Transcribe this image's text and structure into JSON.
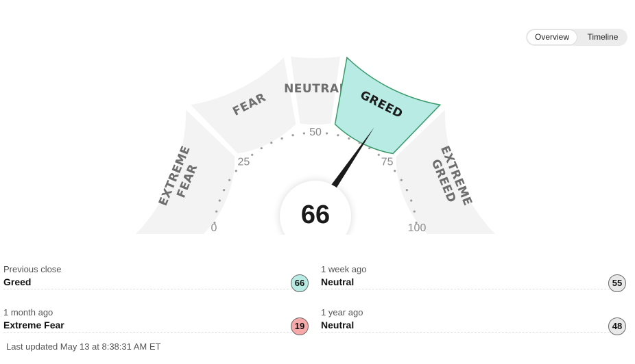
{
  "toggle": {
    "overview_label": "Overview",
    "timeline_label": "Timeline",
    "active": "overview"
  },
  "gauge": {
    "score": 66,
    "active_segment": "greed",
    "segments": [
      {
        "key": "extreme-fear",
        "lines": [
          "EXTREME",
          "FEAR"
        ]
      },
      {
        "key": "fear",
        "lines": [
          "FEAR"
        ]
      },
      {
        "key": "neutral",
        "lines": [
          "NEUTRAL"
        ]
      },
      {
        "key": "greed",
        "lines": [
          "GREED"
        ]
      },
      {
        "key": "extreme-greed",
        "lines": [
          "EXTREME",
          "GREED"
        ]
      }
    ],
    "ticks": [
      {
        "value": 0,
        "label": "0"
      },
      {
        "value": 25,
        "label": "25"
      },
      {
        "value": 50,
        "label": "50"
      },
      {
        "value": 75,
        "label": "75"
      },
      {
        "value": 100,
        "label": "100"
      }
    ],
    "colors": {
      "segment_bg": "#f3f3f3",
      "active_fill": "#b8ebe4",
      "active_border": "#3a9a6a",
      "needle": "#1a1a1a"
    }
  },
  "stats": {
    "previous_close": {
      "label": "Previous close",
      "value": "Greed",
      "score": "66",
      "color": "#b8ebe4"
    },
    "one_week": {
      "label": "1 week ago",
      "value": "Neutral",
      "score": "55",
      "color": "#e8e8e8"
    },
    "one_month": {
      "label": "1 month ago",
      "value": "Extreme Fear",
      "score": "19",
      "color": "#f7a8a8"
    },
    "one_year": {
      "label": "1 year ago",
      "value": "Neutral",
      "score": "48",
      "color": "#e8e8e8"
    }
  },
  "updated": "Last updated May 13 at 8:38:31 AM ET"
}
